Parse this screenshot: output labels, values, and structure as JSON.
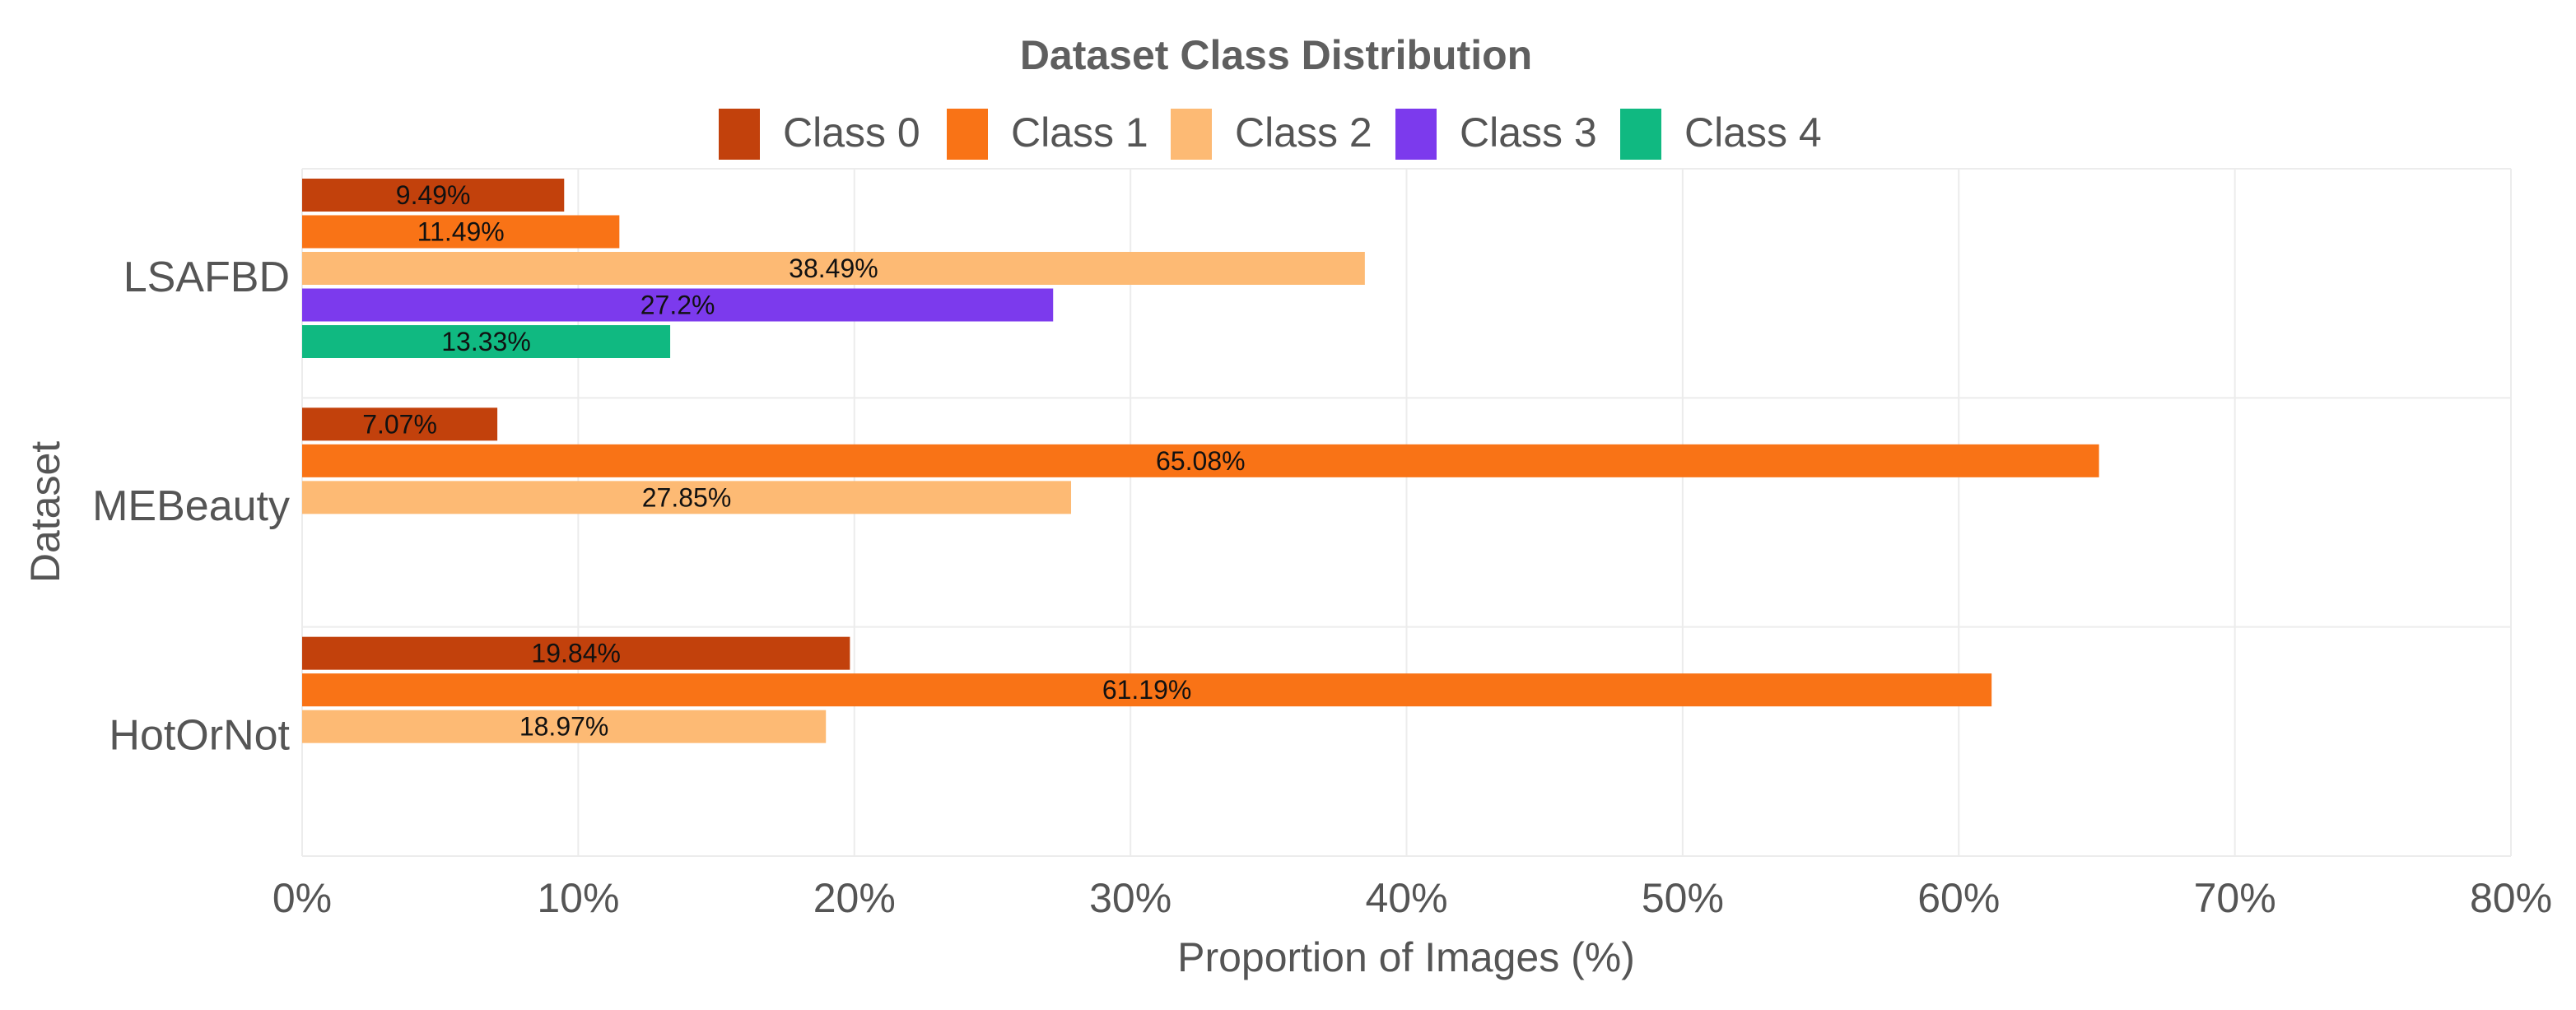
{
  "chart_data": {
    "type": "bar",
    "orientation": "horizontal",
    "title": "Dataset Class Distribution",
    "xlabel": "Proportion of Images (%)",
    "ylabel": "Dataset",
    "xlim": [
      0,
      80
    ],
    "x_ticks": [
      0,
      10,
      20,
      30,
      40,
      50,
      60,
      70,
      80
    ],
    "x_tick_labels": [
      "0%",
      "10%",
      "20%",
      "30%",
      "40%",
      "50%",
      "60%",
      "70%",
      "80%"
    ],
    "grid": true,
    "legend_position": "top",
    "categories": [
      "LSAFBD",
      "MEBeauty",
      "HotOrNot"
    ],
    "series": [
      {
        "name": "Class 0",
        "color": "#c2410c",
        "values": [
          9.49,
          7.07,
          19.84
        ],
        "labels": [
          "9.49%",
          "7.07%",
          "19.84%"
        ]
      },
      {
        "name": "Class 1",
        "color": "#f97316",
        "values": [
          11.49,
          65.08,
          61.19
        ],
        "labels": [
          "11.49%",
          "65.08%",
          "61.19%"
        ]
      },
      {
        "name": "Class 2",
        "color": "#fdba74",
        "values": [
          38.49,
          27.85,
          18.97
        ],
        "labels": [
          "38.49%",
          "27.85%",
          "18.97%"
        ]
      },
      {
        "name": "Class 3",
        "color": "#7c3aed",
        "values": [
          27.2,
          null,
          null
        ],
        "labels": [
          "27.2%",
          null,
          null
        ]
      },
      {
        "name": "Class 4",
        "color": "#10b981",
        "values": [
          13.33,
          null,
          null
        ],
        "labels": [
          "13.33%",
          null,
          null
        ]
      }
    ]
  }
}
